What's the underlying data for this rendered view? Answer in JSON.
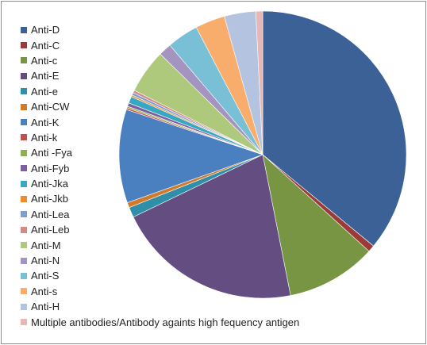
{
  "chart_data": {
    "type": "pie",
    "legend_position": "left",
    "slices": [
      {
        "label": "Anti-D",
        "value": 37.6,
        "color": "#3b6197"
      },
      {
        "label": "Anti-C",
        "value": 0.8,
        "color": "#9c3a3a"
      },
      {
        "label": "Anti-c",
        "value": 10.6,
        "color": "#779542"
      },
      {
        "label": "Anti-E",
        "value": 21.9,
        "color": "#634d81"
      },
      {
        "label": "Anti-e",
        "value": 1.2,
        "color": "#2f8fa8"
      },
      {
        "label": "Anti-CW",
        "value": 0.6,
        "color": "#d07a2a"
      },
      {
        "label": "Anti-K",
        "value": 11.0,
        "color": "#4a7fc0"
      },
      {
        "label": "Anti-k",
        "value": 0.2,
        "color": "#c0504d"
      },
      {
        "label": "Anti -Fya",
        "value": 0.2,
        "color": "#8db14c"
      },
      {
        "label": "Anti-Fyb",
        "value": 0.4,
        "color": "#7b5fa0"
      },
      {
        "label": "Anti-Jka",
        "value": 0.8,
        "color": "#38a7c3"
      },
      {
        "label": "Anti-Jkb",
        "value": 0.2,
        "color": "#f08c2e"
      },
      {
        "label": "Anti-Lea",
        "value": 0.3,
        "color": "#7c9fd2"
      },
      {
        "label": "Anti-Leb",
        "value": 0.3,
        "color": "#d28a89"
      },
      {
        "label": "Anti-M",
        "value": 5.2,
        "color": "#afc97c"
      },
      {
        "label": "Anti-N",
        "value": 1.5,
        "color": "#a394c0"
      },
      {
        "label": "Anti-S",
        "value": 3.7,
        "color": "#79bfd6"
      },
      {
        "label": "Anti-s",
        "value": 3.5,
        "color": "#f9ad6c"
      },
      {
        "label": "Anti-H",
        "value": 3.7,
        "color": "#b3c3e0"
      },
      {
        "label": "Multiple antibodies/Antibody againts high fequency antigen",
        "value": 0.8,
        "color": "#e6b7b6"
      }
    ]
  }
}
